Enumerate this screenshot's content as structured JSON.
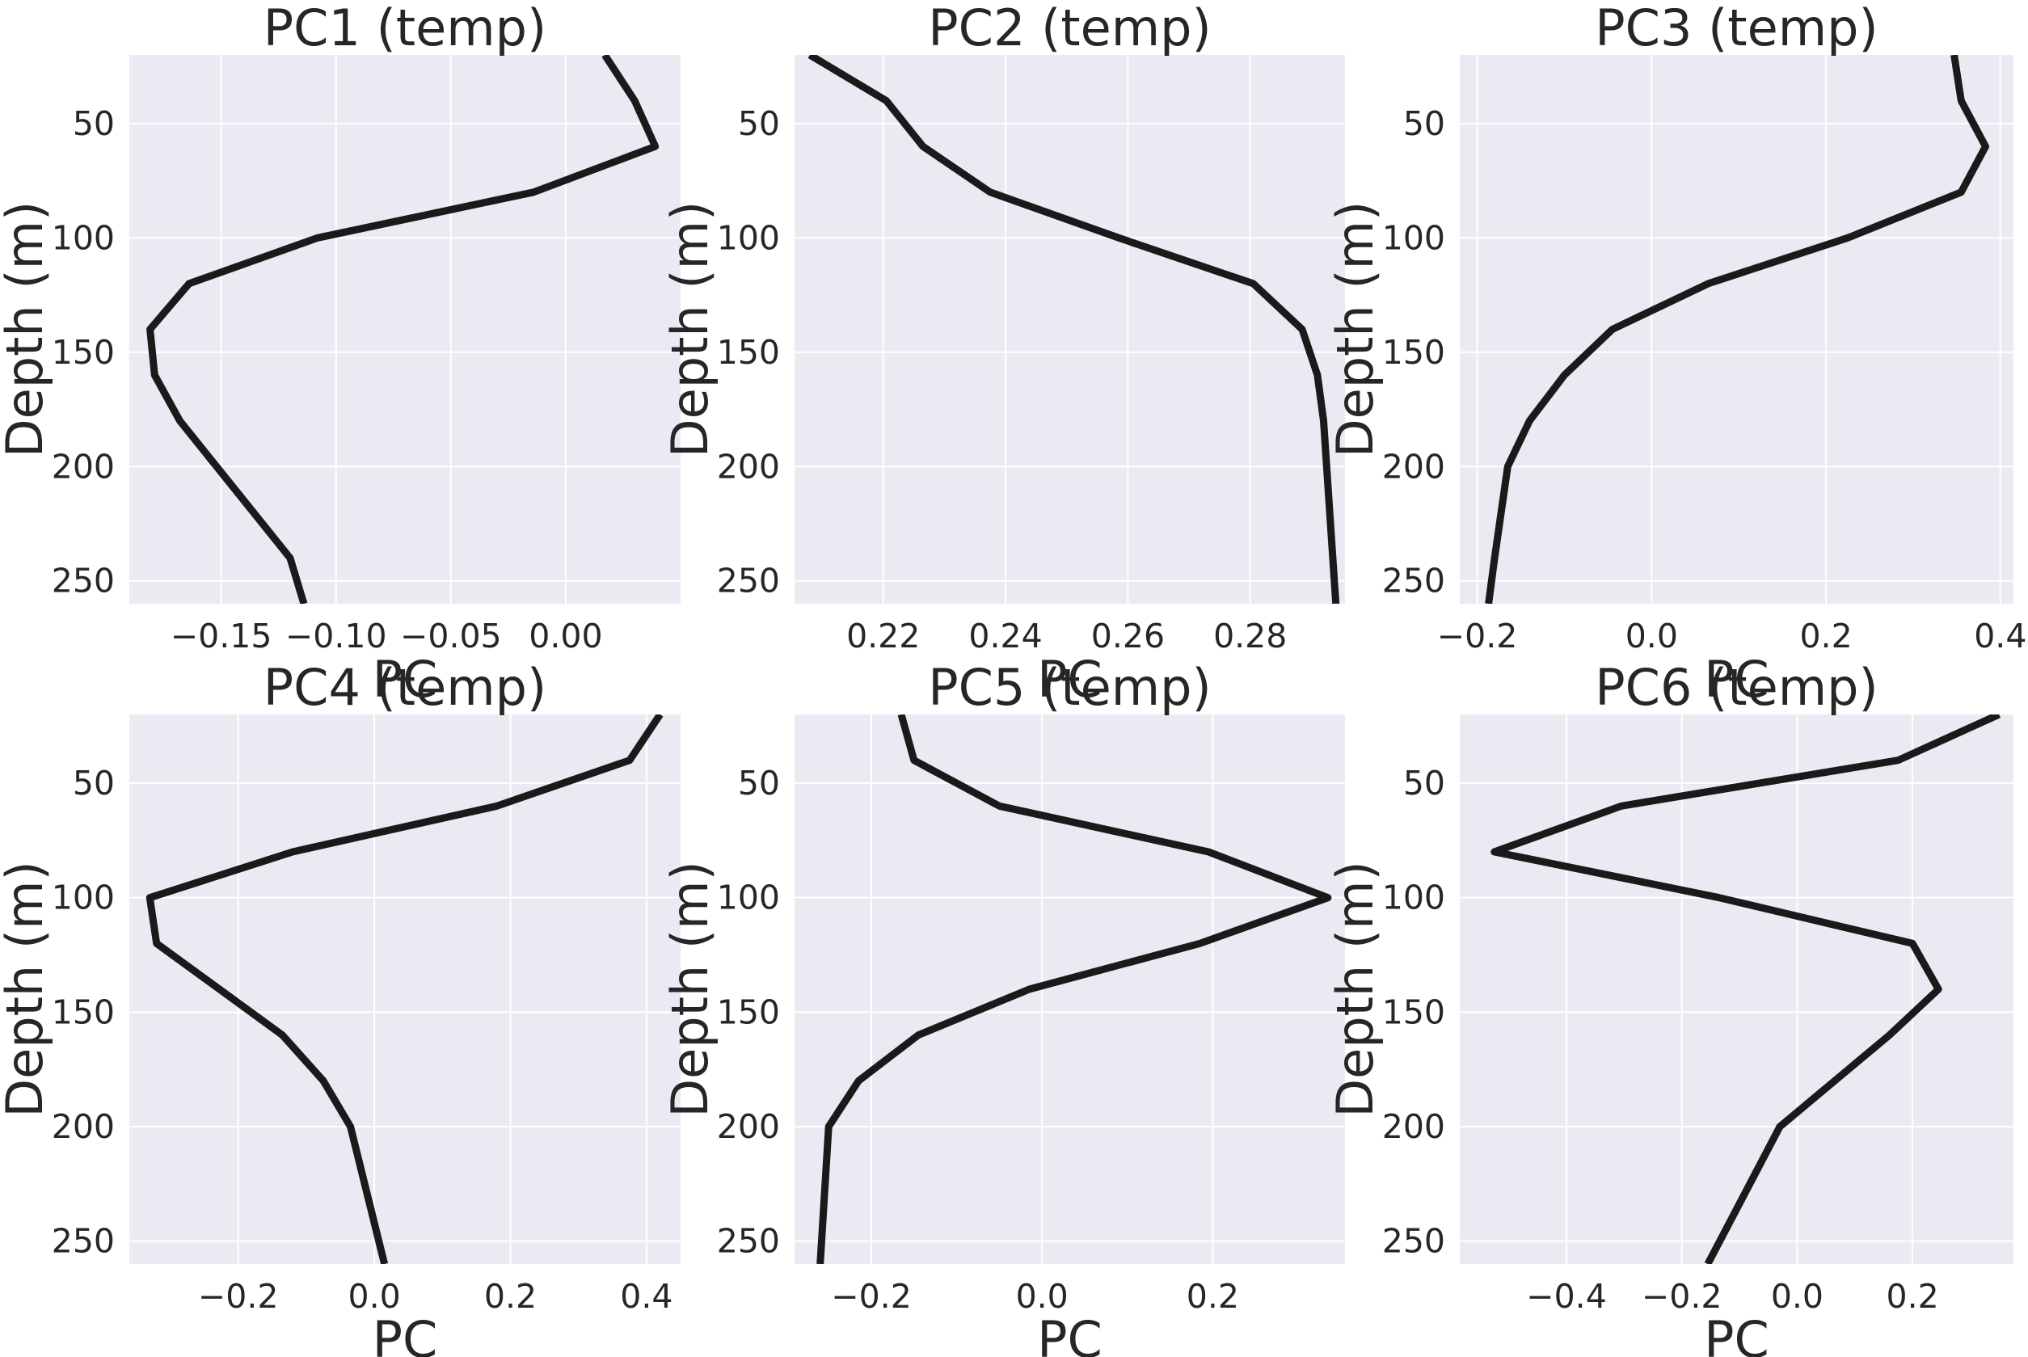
{
  "chart_data": [
    {
      "type": "line",
      "title": "PC1 (temp)",
      "xlabel": "PC",
      "ylabel": "Depth (m)",
      "xlim": [
        -0.19,
        0.05
      ],
      "ylim": [
        260,
        20
      ],
      "xticks": [
        -0.15,
        -0.1,
        -0.05,
        0.0
      ],
      "xtick_labels": [
        "−0.15",
        "−0.10",
        "−0.05",
        "0.00"
      ],
      "yticks": [
        50,
        100,
        150,
        200,
        250
      ],
      "ytick_labels": [
        "50",
        "100",
        "150",
        "200",
        "250"
      ],
      "grid": true,
      "series": [
        {
          "x": [
            0.017,
            0.03,
            0.039,
            -0.014,
            -0.108,
            -0.164,
            -0.181,
            -0.179,
            -0.168,
            -0.152,
            -0.12,
            -0.114
          ],
          "y": [
            20,
            40,
            60,
            80,
            100,
            120,
            140,
            160,
            180,
            200,
            240,
            260
          ]
        }
      ]
    },
    {
      "type": "line",
      "title": "PC2 (temp)",
      "xlabel": "PC",
      "ylabel": "Depth (m)",
      "xlim": [
        0.2055,
        0.2955
      ],
      "ylim": [
        260,
        20
      ],
      "xticks": [
        0.22,
        0.24,
        0.26,
        0.28
      ],
      "xtick_labels": [
        "0.22",
        "0.24",
        "0.26",
        "0.28"
      ],
      "yticks": [
        50,
        100,
        150,
        200,
        250
      ],
      "ytick_labels": [
        "50",
        "100",
        "150",
        "200",
        "250"
      ],
      "grid": true,
      "series": [
        {
          "x": [
            0.208,
            0.2205,
            0.2265,
            0.2375,
            0.2585,
            0.2805,
            0.2885,
            0.291,
            0.292,
            0.2925,
            0.2935,
            0.294
          ],
          "y": [
            20,
            40,
            60,
            80,
            100,
            120,
            140,
            160,
            180,
            200,
            240,
            260
          ]
        }
      ]
    },
    {
      "type": "line",
      "title": "PC3 (temp)",
      "xlabel": "PC",
      "ylabel": "Depth (m)",
      "xlim": [
        -0.22,
        0.415
      ],
      "ylim": [
        260,
        20
      ],
      "xticks": [
        -0.2,
        0.0,
        0.2,
        0.4
      ],
      "xtick_labels": [
        "−0.2",
        "0.0",
        "0.2",
        "0.4"
      ],
      "yticks": [
        50,
        100,
        150,
        200,
        250
      ],
      "ytick_labels": [
        "50",
        "100",
        "150",
        "200",
        "250"
      ],
      "grid": true,
      "series": [
        {
          "x": [
            0.347,
            0.355,
            0.383,
            0.355,
            0.225,
            0.065,
            -0.045,
            -0.1,
            -0.14,
            -0.165,
            -0.18,
            -0.187
          ],
          "y": [
            20,
            40,
            60,
            80,
            100,
            120,
            140,
            160,
            180,
            200,
            240,
            260
          ]
        }
      ]
    },
    {
      "type": "line",
      "title": "PC4 (temp)",
      "xlabel": "PC",
      "ylabel": "Depth (m)",
      "xlim": [
        -0.36,
        0.45
      ],
      "ylim": [
        260,
        20
      ],
      "xticks": [
        -0.2,
        0.0,
        0.2,
        0.4
      ],
      "xtick_labels": [
        "−0.2",
        "0.0",
        "0.2",
        "0.4"
      ],
      "yticks": [
        50,
        100,
        150,
        200,
        250
      ],
      "ytick_labels": [
        "50",
        "100",
        "150",
        "200",
        "250"
      ],
      "grid": true,
      "series": [
        {
          "x": [
            0.42,
            0.375,
            0.18,
            -0.12,
            -0.33,
            -0.32,
            -0.135,
            -0.075,
            -0.035,
            0.015
          ],
          "y": [
            20,
            40,
            60,
            80,
            100,
            120,
            160,
            180,
            200,
            260
          ]
        }
      ]
    },
    {
      "type": "line",
      "title": "PC5 (temp)",
      "xlabel": "PC",
      "ylabel": "Depth (m)",
      "xlim": [
        -0.29,
        0.355
      ],
      "ylim": [
        260,
        20
      ],
      "xticks": [
        -0.2,
        0.0,
        0.2
      ],
      "xtick_labels": [
        "−0.2",
        "0.0",
        "0.2"
      ],
      "yticks": [
        50,
        100,
        150,
        200,
        250
      ],
      "ytick_labels": [
        "50",
        "100",
        "150",
        "200",
        "250"
      ],
      "grid": true,
      "series": [
        {
          "x": [
            -0.165,
            -0.15,
            -0.05,
            0.195,
            0.335,
            0.185,
            -0.015,
            -0.145,
            -0.215,
            -0.25,
            -0.26
          ],
          "y": [
            20,
            40,
            60,
            80,
            100,
            120,
            140,
            160,
            180,
            200,
            260
          ]
        }
      ]
    },
    {
      "type": "line",
      "title": "PC6 (temp)",
      "xlabel": "PC",
      "ylabel": "Depth (m)",
      "xlim": [
        -0.585,
        0.375
      ],
      "ylim": [
        260,
        20
      ],
      "xticks": [
        -0.4,
        -0.2,
        0.0,
        0.2
      ],
      "xtick_labels": [
        "−0.4",
        "−0.2",
        "0.0",
        "0.2"
      ],
      "yticks": [
        50,
        100,
        150,
        200,
        250
      ],
      "ytick_labels": [
        "50",
        "100",
        "150",
        "200",
        "250"
      ],
      "grid": true,
      "series": [
        {
          "x": [
            0.35,
            0.175,
            -0.305,
            -0.525,
            -0.135,
            0.2,
            0.245,
            0.16,
            0.065,
            -0.03,
            -0.155
          ],
          "y": [
            20,
            40,
            60,
            80,
            100,
            120,
            140,
            160,
            180,
            200,
            260
          ]
        }
      ]
    }
  ]
}
